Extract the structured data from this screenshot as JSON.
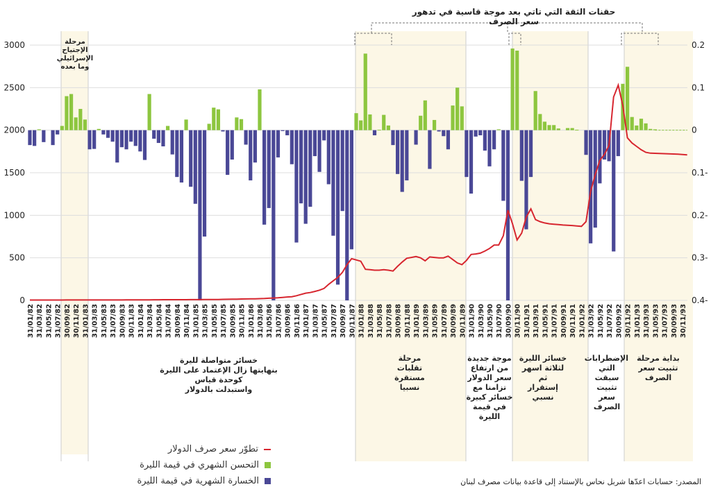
{
  "top_annotation": "حقنات الثقة التي تاتي بعد موجة قاسية في تدهور سعر الصرف",
  "annotations": {
    "invasion": "مرحلة\nالإجتياح\nالإسرائيلي\nوما بعده",
    "continuous_losses": "خسائر متواصلة لليرة\nبنهايتها زال الإعتماد على الليرة\nكوحدة قياس\nواستبدلت بالدولار",
    "relative_stability": "مرحلة\nتقلبات\nمستقرة\nنسبيا",
    "new_wave": "موجة جديدة\nمن ارتفاع\nسعر الدولار\nتزامنا مع\nخسائر كبيرة\nفي قيمة\nالليرة",
    "three_months": "خسائر الليرة\nلثلاثة اسهر\nثم\nإستقرار\nنسبي",
    "turmoil": "الإضطرابات\nالتي\nسبقت\nتثبيت\nسعر\nالصرف",
    "stabilization": "بداية مرحلة\nتثبيت سعر\nالصرف"
  },
  "legend": {
    "rate": "تطوّر سعر صرف الدولار",
    "gain": "التحسن الشهري في قيمة الليرة",
    "loss": "الخسارة الشهرية في قيمة الليرة"
  },
  "source": "المصدر: حسابات اعدّها شربل نحاس بالإستناد إلى قاعدة بيانات مصرف لبنان",
  "colors": {
    "gain": "#8dc63f",
    "loss": "#4a4896",
    "rate": "#d7262f",
    "shade": "#fcf7e6"
  },
  "chart_data": {
    "type": "bar+line",
    "title": "حقنات الثقة التي تاتي بعد موجة قاسية في تدهور سعر الصرف",
    "left_axis": {
      "label": "",
      "ylim": [
        0,
        3000
      ],
      "ticks": [
        "3000",
        "2500",
        "2000",
        "1500",
        "1000",
        "500",
        "0"
      ]
    },
    "right_axis": {
      "label": "",
      "ylim": [
        -0.4,
        0.2
      ],
      "ticks": [
        "0.2",
        "0.1",
        "0",
        "0.1-",
        "0.2-",
        "0.3-",
        "0.4-"
      ]
    },
    "x_tick_labels": [
      "31/01/82",
      "31/03/82",
      "31/05/82",
      "31/07/82",
      "30/09/82",
      "30/11/82",
      "31/01/83",
      "31/03/83",
      "31/05/83",
      "31/07/83",
      "30/09/83",
      "30/11/83",
      "31/01/84",
      "31/03/84",
      "31/05/84",
      "31/07/84",
      "30/09/84",
      "30/11/84",
      "31/01/85",
      "31/03/85",
      "31/05/85",
      "31/07/85",
      "30/09/85",
      "30/11/85",
      "31/01/86",
      "31/03/86",
      "31/05/86",
      "31/07/86",
      "30/09/86",
      "30/11/86",
      "31/01/87",
      "31/03/87",
      "31/05/87",
      "31/07/87",
      "30/09/87",
      "30/11/87",
      "31/01/88",
      "31/03/88",
      "31/05/88",
      "31/07/88",
      "30/09/88",
      "30/11/88",
      "31/01/89",
      "31/03/89",
      "31/05/89",
      "31/07/89",
      "30/09/89",
      "30/11/89",
      "31/01/90",
      "31/03/90",
      "31/05/90",
      "31/07/90",
      "30/09/90",
      "30/11/90",
      "31/01/91",
      "31/03/91",
      "31/05/91",
      "31/07/91",
      "30/09/91",
      "30/11/91",
      "31/01/92",
      "31/03/92",
      "31/05/92",
      "31/07/92",
      "30/09/92",
      "30/11/92",
      "31/01/93",
      "31/03/93",
      "31/05/93",
      "31/07/93",
      "30/09/93",
      "30/11/93"
    ],
    "period": "monthly, 01/1982 – 12/1993",
    "series": [
      {
        "name": "التحسن / الخسارة الشهرية في قيمة الليرة",
        "axis": "right",
        "type": "bar",
        "values": [
          -0.035,
          -0.037,
          0.002,
          -0.028,
          0,
          -0.035,
          -0.01,
          0.01,
          0.08,
          0.085,
          0.03,
          0.05,
          0.025,
          -0.045,
          -0.044,
          0.003,
          -0.01,
          -0.018,
          -0.027,
          -0.076,
          -0.04,
          -0.045,
          -0.027,
          -0.037,
          -0.05,
          -0.07,
          0.085,
          -0.02,
          -0.03,
          -0.038,
          0.01,
          -0.057,
          -0.11,
          -0.123,
          0.025,
          -0.133,
          -0.173,
          -0.4,
          -0.25,
          0.015,
          0.053,
          0.049,
          -0.003,
          -0.105,
          -0.069,
          0.03,
          0.026,
          -0.034,
          -0.118,
          -0.076,
          0.096,
          -0.222,
          -0.183,
          -0.4,
          -0.064,
          -0.002,
          -0.012,
          -0.08,
          -0.264,
          -0.172,
          -0.22,
          -0.18,
          -0.061,
          -0.098,
          -0.024,
          -0.127,
          -0.248,
          -0.363,
          -0.19,
          -0.4,
          -0.28,
          0.04,
          0.023,
          0.18,
          0.037,
          -0.012,
          0.001,
          0.036,
          0.011,
          -0.035,
          -0.103,
          -0.145,
          -0.118,
          0,
          -0.034,
          0.034,
          0.07,
          -0.091,
          0.024,
          -0.003,
          -0.014,
          -0.045,
          0.058,
          0.1,
          0.056,
          -0.11,
          -0.149,
          -0.015,
          -0.012,
          -0.048,
          -0.085,
          -0.045,
          0.002,
          -0.166,
          -0.4,
          0.192,
          0.187,
          -0.119,
          -0.233,
          -0.11,
          0.092,
          0.038,
          0.02,
          0.012,
          0.012,
          0.004,
          0,
          0.005,
          0.005,
          0.001,
          0,
          -0.058,
          -0.266,
          -0.229,
          -0.125,
          -0.069,
          -0.073,
          -0.285,
          -0.061,
          0.109,
          0.149,
          0.031,
          0.011,
          0.027,
          0.016,
          0.003,
          0.002,
          0,
          0,
          0,
          0,
          0,
          0,
          0
        ]
      },
      {
        "name": "تطوّر سعر صرف الدولار",
        "axis": "left",
        "type": "line",
        "values": [
          4,
          4,
          4,
          4,
          4,
          4,
          4,
          4,
          5,
          5,
          5,
          5,
          5,
          5,
          5,
          5,
          5,
          5,
          5,
          5,
          5,
          6,
          6,
          6,
          6,
          6,
          6,
          7,
          7,
          8,
          8,
          8,
          8,
          8,
          8,
          9,
          9,
          9,
          10,
          10,
          10,
          11,
          12,
          13,
          14,
          15,
          16,
          17,
          18,
          19,
          20,
          22,
          25,
          28,
          30,
          35,
          40,
          43,
          55,
          70,
          85,
          92,
          105,
          120,
          140,
          188,
          230,
          270,
          330,
          420,
          490,
          475,
          460,
          365,
          360,
          355,
          355,
          360,
          355,
          345,
          400,
          450,
          495,
          505,
          515,
          500,
          465,
          510,
          505,
          500,
          500,
          520,
          480,
          440,
          420,
          470,
          540,
          545,
          555,
          580,
          610,
          650,
          650,
          760,
          1060,
          900,
          710,
          790,
          980,
          1075,
          950,
          925,
          910,
          900,
          895,
          890,
          885,
          882,
          880,
          875,
          870,
          925,
          1280,
          1480,
          1645,
          1715,
          1820,
          2390,
          2530,
          2290,
          1910,
          1850,
          1810,
          1770,
          1740,
          1730,
          1728,
          1726,
          1724,
          1722,
          1720,
          1718,
          1714,
          1710
        ]
      }
    ],
    "grid": true,
    "legend_position": "bottom-left"
  }
}
